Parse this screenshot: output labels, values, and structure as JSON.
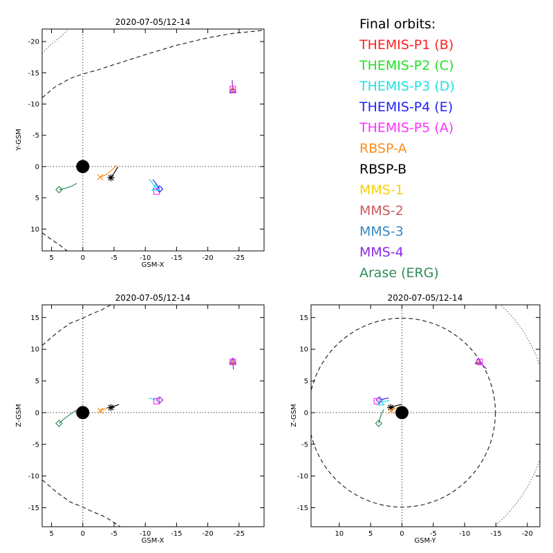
{
  "colors": {
    "themis_p1": "#ff2020",
    "themis_p2": "#22e022",
    "themis_p3": "#20e0e0",
    "themis_p4": "#2020ff",
    "themis_p5": "#ff30ff",
    "rbsp_a": "#ff8c1a",
    "rbsp_b": "#000000",
    "mms1": "#f5d000",
    "mms2": "#cc5a5a",
    "mms3": "#3a88c0",
    "mms4": "#8a2be2",
    "arase": "#2e8b57"
  },
  "legend": {
    "title": "Final orbits:",
    "entries": [
      {
        "label": "THEMIS-P1 (B)",
        "color": "#ff2020"
      },
      {
        "label": "THEMIS-P2 (C)",
        "color": "#22e022"
      },
      {
        "label": "THEMIS-P3 (D)",
        "color": "#20e0e0"
      },
      {
        "label": "THEMIS-P4 (E)",
        "color": "#2020ff"
      },
      {
        "label": "THEMIS-P5 (A)",
        "color": "#ff30ff"
      },
      {
        "label": "RBSP-A",
        "color": "#ff8c1a"
      },
      {
        "label": "RBSP-B",
        "color": "#000000"
      },
      {
        "label": "MMS-1",
        "color": "#f5d000"
      },
      {
        "label": "MMS-2",
        "color": "#cc5a5a"
      },
      {
        "label": "MMS-3",
        "color": "#3a88c0"
      },
      {
        "label": "MMS-4",
        "color": "#8a2be2"
      },
      {
        "label": "Arase (ERG)",
        "color": "#2e8b57"
      }
    ]
  },
  "chart_data": [
    {
      "type": "scatter",
      "title": "2020-07-05/12-14",
      "xlabel": "GSM-X",
      "ylabel": "Y-GSM",
      "xlim": [
        6.5,
        -29
      ],
      "ylim": [
        13.5,
        -22
      ],
      "xticks": [
        5,
        0,
        -5,
        -10,
        -15,
        -20,
        -25
      ],
      "yticks": [
        -20,
        -15,
        -10,
        -5,
        0,
        5,
        10
      ],
      "grid": false,
      "earth": [
        0,
        0
      ],
      "markers": [
        {
          "symbol": "diamond",
          "color": "#2e8b57",
          "x": 3.8,
          "y": 3.7
        },
        {
          "symbol": "x",
          "color": "#ff8c1a",
          "x": -2.8,
          "y": 1.7
        },
        {
          "symbol": "asterisk",
          "color": "#000000",
          "x": -4.5,
          "y": 1.8
        },
        {
          "symbol": "square",
          "color": "#ff30ff",
          "x": -11.8,
          "y": 4.0
        },
        {
          "symbol": "diamond",
          "color": "#2020ff",
          "x": -12.3,
          "y": 3.6
        },
        {
          "symbol": "triangle",
          "color": "#20e0e0",
          "x": -11.6,
          "y": 3.4
        },
        {
          "symbol": "square",
          "color": "#ff30ff",
          "x": -24.0,
          "y": -12.4
        },
        {
          "symbol": "triangle",
          "color": "#8a2be2",
          "x": -24.0,
          "y": -12.2
        },
        {
          "symbol": "plus",
          "color": "#cc5a5a",
          "x": -24.0,
          "y": -12.3
        }
      ],
      "tracks": [
        {
          "color": "#2e8b57",
          "points": [
            [
              3.8,
              3.7
            ],
            [
              2.8,
              3.5
            ],
            [
              1.7,
              3.1
            ],
            [
              1.0,
              2.7
            ]
          ]
        },
        {
          "color": "#ff8c1a",
          "points": [
            [
              -2.8,
              1.7
            ],
            [
              -3.9,
              1.2
            ],
            [
              -4.8,
              0.4
            ],
            [
              -5.4,
              -0.2
            ]
          ]
        },
        {
          "color": "#000000",
          "points": [
            [
              -4.5,
              1.8
            ],
            [
              -5.1,
              0.9
            ],
            [
              -5.6,
              0.1
            ]
          ]
        },
        {
          "color": "#20e0e0",
          "points": [
            [
              -11.6,
              3.4
            ],
            [
              -11.1,
              2.6
            ],
            [
              -10.6,
              2.0
            ]
          ]
        },
        {
          "color": "#2020ff",
          "points": [
            [
              -12.3,
              3.6
            ],
            [
              -11.7,
              2.7
            ],
            [
              -11.2,
              2.1
            ]
          ]
        },
        {
          "color": "#8a2be2",
          "points": [
            [
              -24.0,
              -12.3
            ],
            [
              -23.9,
              -13.8
            ]
          ]
        }
      ],
      "boundaries": [
        {
          "style": "dashed",
          "points": [
            [
              6.5,
              -11.0
            ],
            [
              4.5,
              -12.7
            ],
            [
              2.0,
              -14.1
            ],
            [
              0.0,
              -14.8
            ],
            [
              -2.5,
              -15.5
            ],
            [
              -5.0,
              -16.3
            ],
            [
              -10.0,
              -17.9
            ],
            [
              -15.0,
              -19.4
            ],
            [
              -20.0,
              -20.6
            ],
            [
              -24.0,
              -21.3
            ],
            [
              -29.0,
              -21.8
            ]
          ]
        },
        {
          "style": "dashed",
          "points": [
            [
              6.5,
              10.6
            ],
            [
              5.0,
              11.7
            ],
            [
              3.5,
              12.7
            ],
            [
              2.5,
              13.5
            ]
          ]
        },
        {
          "style": "dotted",
          "points": [
            [
              6.5,
              -18.2
            ],
            [
              5.0,
              -19.6
            ],
            [
              3.5,
              -20.8
            ],
            [
              2.3,
              -22.0
            ]
          ]
        }
      ]
    },
    {
      "type": "scatter",
      "title": "2020-07-05/12-14",
      "xlabel": "GSM-X",
      "ylabel": "Z-GSM",
      "xlim": [
        6.5,
        -29
      ],
      "ylim": [
        -18,
        17
      ],
      "xticks": [
        5,
        0,
        -5,
        -10,
        -15,
        -20,
        -25
      ],
      "yticks": [
        -15,
        -10,
        -5,
        0,
        5,
        10,
        15
      ],
      "grid": false,
      "earth": [
        0,
        0
      ],
      "markers": [
        {
          "symbol": "diamond",
          "color": "#2e8b57",
          "x": 3.8,
          "y": -1.7
        },
        {
          "symbol": "x",
          "color": "#ff8c1a",
          "x": -2.8,
          "y": 0.3
        },
        {
          "symbol": "asterisk",
          "color": "#000000",
          "x": -4.5,
          "y": 0.8
        },
        {
          "symbol": "square",
          "color": "#ff30ff",
          "x": -11.8,
          "y": 1.8
        },
        {
          "symbol": "diamond",
          "color": "#8a2be2",
          "x": -12.3,
          "y": 2.0
        },
        {
          "symbol": "square",
          "color": "#ff30ff",
          "x": -24.0,
          "y": 8.0
        },
        {
          "symbol": "triangle",
          "color": "#8a2be2",
          "x": -24.0,
          "y": 8.1
        },
        {
          "symbol": "plus",
          "color": "#cc5a5a",
          "x": -24.0,
          "y": 7.9
        }
      ],
      "tracks": [
        {
          "color": "#2e8b57",
          "points": [
            [
              3.8,
              -1.7
            ],
            [
              2.9,
              -0.9
            ],
            [
              1.9,
              -0.2
            ],
            [
              1.0,
              0.4
            ]
          ]
        },
        {
          "color": "#ff8c1a",
          "points": [
            [
              -2.8,
              0.3
            ],
            [
              -3.8,
              0.7
            ],
            [
              -4.6,
              0.9
            ]
          ]
        },
        {
          "color": "#000000",
          "points": [
            [
              -4.5,
              0.8
            ],
            [
              -5.3,
              1.1
            ],
            [
              -5.8,
              1.3
            ]
          ]
        },
        {
          "color": "#20e0e0",
          "points": [
            [
              -11.6,
              2.0
            ],
            [
              -11.0,
              2.2
            ],
            [
              -10.5,
              2.3
            ]
          ]
        },
        {
          "color": "#8a2be2",
          "points": [
            [
              -24.0,
              8.0
            ],
            [
              -24.1,
              6.8
            ]
          ]
        }
      ],
      "boundaries": [
        {
          "style": "dashed",
          "points": [
            [
              6.5,
              10.6
            ],
            [
              4.0,
              12.7
            ],
            [
              2.0,
              14.1
            ],
            [
              0.0,
              14.9
            ],
            [
              -1.5,
              15.6
            ],
            [
              -3.0,
              16.2
            ],
            [
              -4.5,
              17.0
            ]
          ]
        },
        {
          "style": "dashed",
          "points": [
            [
              6.5,
              -10.6
            ],
            [
              4.0,
              -12.7
            ],
            [
              2.0,
              -14.1
            ],
            [
              0.0,
              -14.9
            ],
            [
              -1.5,
              -15.6
            ],
            [
              -3.0,
              -16.2
            ],
            [
              -4.5,
              -17.0
            ],
            [
              -6.0,
              -18.0
            ]
          ]
        }
      ]
    },
    {
      "type": "scatter",
      "title": "2020-07-05/12-14",
      "xlabel": "GSM-Y",
      "ylabel": "Z-GSM",
      "xlim": [
        14.5,
        -22
      ],
      "ylim": [
        -18,
        17
      ],
      "xticks": [
        10,
        5,
        0,
        -5,
        -10,
        -15,
        -20
      ],
      "yticks": [
        -15,
        -10,
        -5,
        0,
        5,
        10,
        15
      ],
      "grid": false,
      "earth": [
        0,
        0
      ],
      "markers": [
        {
          "symbol": "diamond",
          "color": "#2e8b57",
          "x": 3.7,
          "y": -1.7
        },
        {
          "symbol": "asterisk",
          "color": "#000000",
          "x": 1.8,
          "y": 0.8
        },
        {
          "symbol": "x",
          "color": "#ff8c1a",
          "x": 1.7,
          "y": 0.3
        },
        {
          "symbol": "square",
          "color": "#ff30ff",
          "x": 4.0,
          "y": 1.8
        },
        {
          "symbol": "diamond",
          "color": "#8a2be2",
          "x": 3.6,
          "y": 2.0
        },
        {
          "symbol": "triangle",
          "color": "#20e0e0",
          "x": 3.4,
          "y": 1.6
        },
        {
          "symbol": "square",
          "color": "#ff30ff",
          "x": -12.4,
          "y": 8.0
        },
        {
          "symbol": "triangle",
          "color": "#8a2be2",
          "x": -12.2,
          "y": 8.1
        },
        {
          "symbol": "plus",
          "color": "#cc5a5a",
          "x": -12.3,
          "y": 7.9
        }
      ],
      "tracks": [
        {
          "color": "#2e8b57",
          "points": [
            [
              3.7,
              -1.7
            ],
            [
              3.5,
              -0.8
            ],
            [
              3.2,
              0.0
            ],
            [
              2.9,
              0.5
            ]
          ]
        },
        {
          "color": "#ff8c1a",
          "points": [
            [
              1.7,
              0.3
            ],
            [
              1.0,
              0.7
            ],
            [
              0.2,
              1.0
            ]
          ]
        },
        {
          "color": "#000000",
          "points": [
            [
              1.8,
              0.8
            ],
            [
              0.9,
              1.1
            ],
            [
              0.1,
              1.3
            ]
          ]
        },
        {
          "color": "#20e0e0",
          "points": [
            [
              3.4,
              1.6
            ],
            [
              2.6,
              1.8
            ],
            [
              2.0,
              1.9
            ]
          ]
        },
        {
          "color": "#2020ff",
          "points": [
            [
              3.6,
              2.0
            ],
            [
              2.7,
              2.2
            ],
            [
              2.1,
              2.3
            ]
          ]
        },
        {
          "color": "#8a2be2",
          "points": [
            [
              -12.3,
              8.0
            ],
            [
              -13.5,
              6.9
            ]
          ]
        }
      ],
      "circles": [
        {
          "style": "dashed",
          "cx": 0,
          "cy": 0,
          "r": 14.9
        },
        {
          "style": "dotted",
          "cx": 0,
          "cy": 0,
          "r": 23.2
        }
      ]
    }
  ]
}
